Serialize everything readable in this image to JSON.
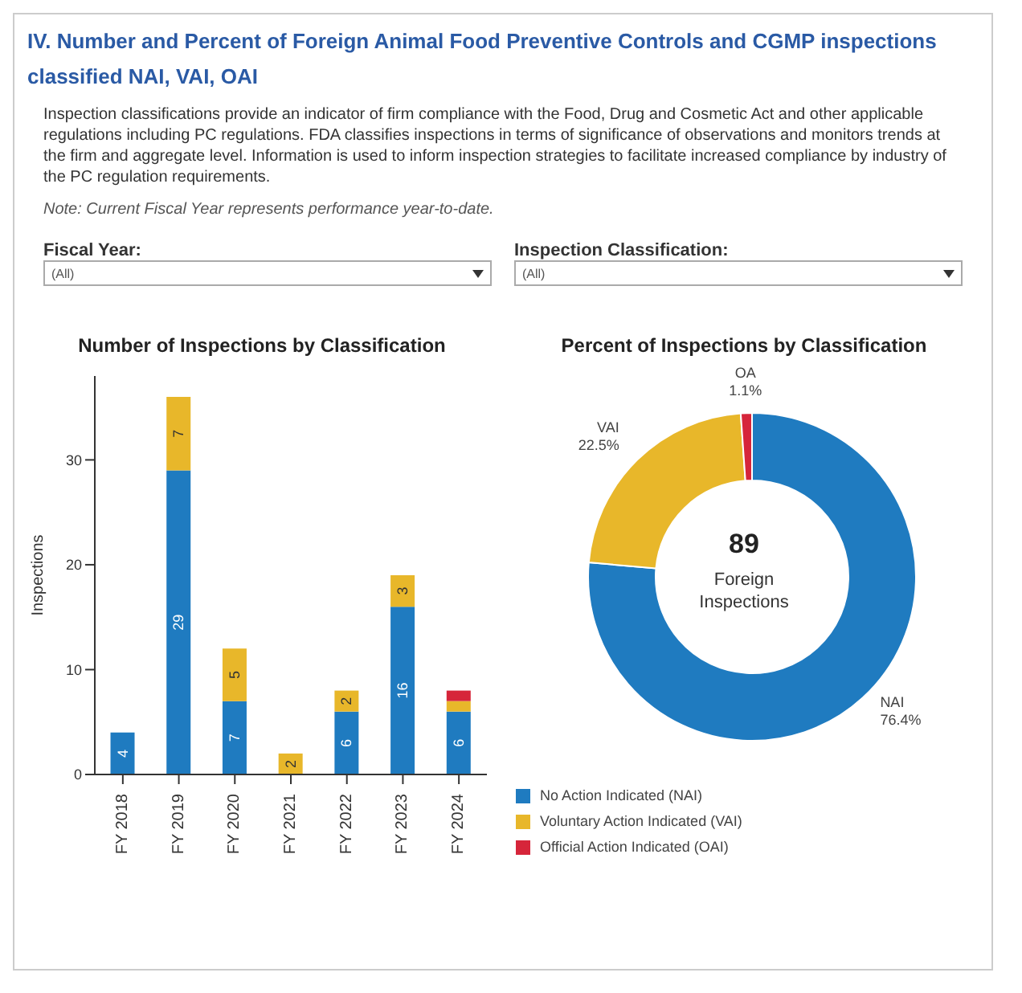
{
  "chart_data": [
    {
      "type": "bar",
      "title": "Number of Inspections by Classification",
      "ylabel": "Inspections",
      "annotations": [
        "IV. Number and Percent of Foreign Animal Food Preventive Controls and CGMP inspections classified NAI, VAI, OAI",
        "Inspection classifications provide an indicator of firm compliance with the Food, Drug and Cosmetic Act and other applicable regulations including PC regulations.  FDA classifies inspections in terms of significance of observations and monitors trends at the firm and aggregate level.  Information is used to inform inspection strategies to facilitate increased compliance by industry of the PC regulation requirements.",
        "Note: Current Fiscal Year represents performance year-to-date.",
        "Fiscal Year:",
        "(All)",
        "Inspection Classification:",
        "(All)"
      ],
      "categories": [
        "FY 2018",
        "FY 2019",
        "FY 2020",
        "FY 2021",
        "FY 2022",
        "FY 2023",
        "FY 2024"
      ],
      "stacked": true,
      "series": [
        {
          "name": "No Action Indicated (NAI)",
          "color": "#1f7bc0",
          "values": [
            4,
            29,
            7,
            null,
            6,
            16,
            6
          ],
          "value_labels": [
            "4",
            "29",
            "7",
            null,
            "6",
            "16",
            "6"
          ]
        },
        {
          "name": "Voluntary Action Indicated (VAI)",
          "color": "#e8b72a",
          "values": [
            null,
            7,
            5,
            2,
            2,
            3,
            1
          ],
          "value_labels": [
            null,
            "7",
            "5",
            "2",
            "2",
            "3",
            null
          ]
        },
        {
          "name": "Official Action Indicated (OAI)",
          "color": "#d6253a",
          "values": [
            null,
            null,
            null,
            null,
            null,
            null,
            1
          ]
        }
      ],
      "ylim": [
        0,
        38
      ],
      "yticks": [
        0,
        10,
        20,
        30
      ],
      "legend": "bottom right"
    },
    {
      "type": "donut",
      "title": "Percent of Inspections by Classification",
      "categories": [
        "NAI",
        "VAI",
        "OA"
      ],
      "values": [
        76.4,
        22.5,
        1.1
      ],
      "colors": [
        "#1f7bc0",
        "#e8b72a",
        "#d6253a"
      ],
      "value_labels": [
        "76.4%",
        "22.5%",
        "1.1%"
      ],
      "annotations": [
        "89",
        "Foreign Inspections"
      ]
    }
  ]
}
